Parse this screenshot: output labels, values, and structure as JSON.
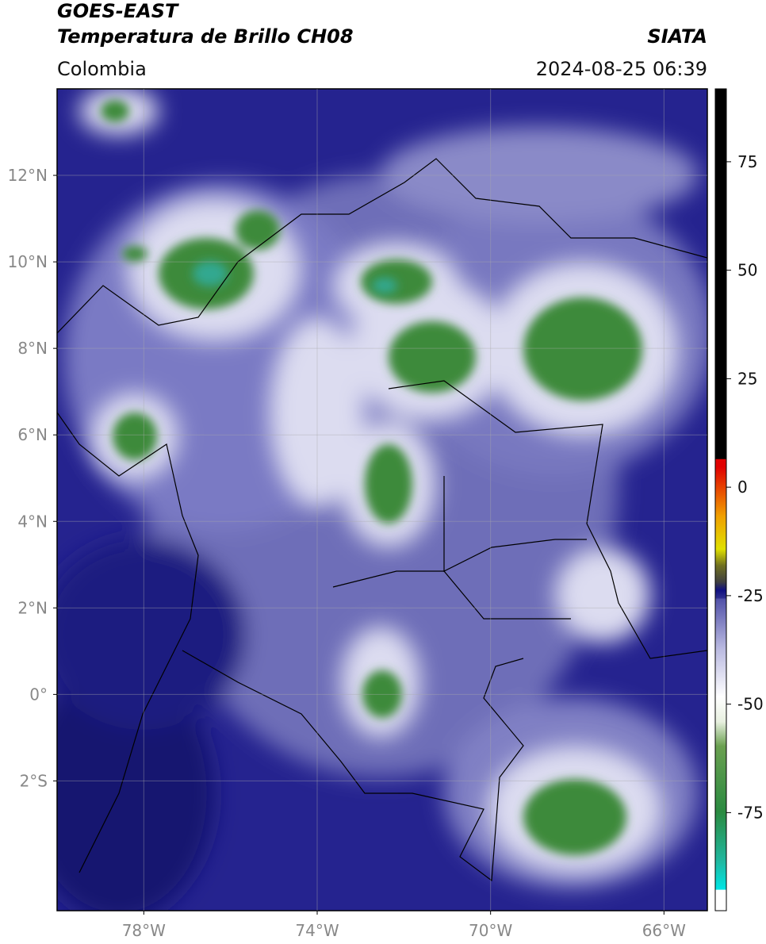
{
  "header": {
    "title": "GOES-EAST",
    "subtitle": "Temperatura de Brillo CH08",
    "source": "SIATA",
    "region": "Colombia",
    "datetime": "2024-08-25 06:39"
  },
  "map": {
    "lon_lim": [
      -80,
      -65
    ],
    "lat_lim": [
      -5,
      14
    ],
    "lat_ticks": [
      {
        "value": 12,
        "label": "12°N"
      },
      {
        "value": 10,
        "label": "10°N"
      },
      {
        "value": 8,
        "label": "8°N"
      },
      {
        "value": 6,
        "label": "6°N"
      },
      {
        "value": 4,
        "label": "4°N"
      },
      {
        "value": 2,
        "label": "2°N"
      },
      {
        "value": 0,
        "label": "0°"
      },
      {
        "value": -2,
        "label": "2°S"
      }
    ],
    "lon_ticks": [
      {
        "value": -78,
        "label": "78°W"
      },
      {
        "value": -74,
        "label": "74°W"
      },
      {
        "value": -70,
        "label": "70°W"
      },
      {
        "value": -66,
        "label": "66°W"
      }
    ]
  },
  "colorbar": {
    "lim": [
      -97.6,
      91.8
    ],
    "ticks": [
      75,
      50,
      25,
      0,
      -25,
      -50,
      -75
    ]
  }
}
